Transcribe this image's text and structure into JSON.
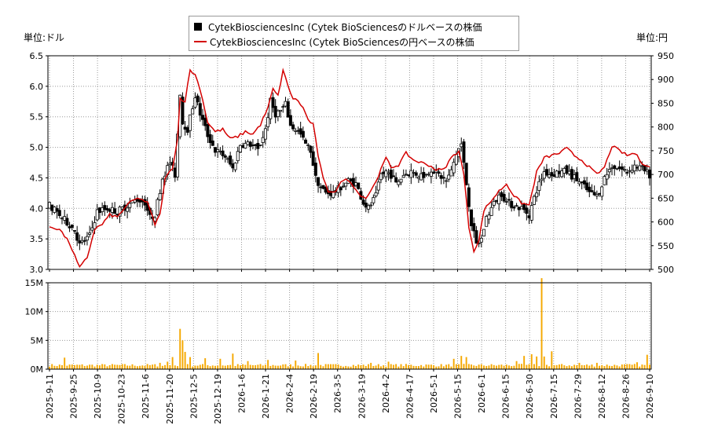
{
  "legend": {
    "usd": "CytekBiosciencesInc (Cytek BioSciencesのドルベースの株価",
    "jpy": "CytekBiosciencesInc (Cytek BioSciencesの円ベースの株価"
  },
  "units": {
    "left": "単位:ドル",
    "right": "単位:円"
  },
  "chart_data": {
    "type": "candlestick+line+bar",
    "price_axis_usd": {
      "min": 3.0,
      "max": 6.5,
      "ticks": [
        "3.0",
        "3.5",
        "4.0",
        "4.5",
        "5.0",
        "5.5",
        "6.0",
        "6.5"
      ]
    },
    "price_axis_jpy": {
      "min": 500,
      "max": 950,
      "ticks": [
        "500",
        "550",
        "600",
        "650",
        "700",
        "750",
        "800",
        "850",
        "900",
        "950"
      ]
    },
    "volume_axis": {
      "min": 0,
      "max": 15000000,
      "ticks": [
        "0M",
        "5M",
        "10M",
        "15M"
      ]
    },
    "x_ticks": [
      "2025-9-11",
      "2025-9-25",
      "2025-10-9",
      "2025-10-23",
      "2025-11-6",
      "2025-11-20",
      "2025-12-5",
      "2025-12-19",
      "2026-1-6",
      "2026-1-21",
      "2026-2-4",
      "2026-2-19",
      "2026-3-5",
      "2026-3-19",
      "2026-4-2",
      "2026-4-17",
      "2026-5-1",
      "2026-5-15",
      "2026-6-1",
      "2026-6-15",
      "2026-6-30",
      "2026-7-15",
      "2026-7-29",
      "2026-8-12",
      "2026-8-26",
      "2026-9-10"
    ],
    "usd_close_anchors": [
      [
        0,
        4.05
      ],
      [
        5,
        3.85
      ],
      [
        10,
        3.65
      ],
      [
        12,
        3.4
      ],
      [
        16,
        3.55
      ],
      [
        19,
        3.95
      ],
      [
        23,
        4.0
      ],
      [
        27,
        3.95
      ],
      [
        31,
        4.05
      ],
      [
        35,
        4.15
      ],
      [
        38,
        4.1
      ],
      [
        40,
        3.85
      ],
      [
        42,
        3.9
      ],
      [
        45,
        4.5
      ],
      [
        48,
        4.75
      ],
      [
        50,
        4.55
      ],
      [
        52,
        5.9
      ],
      [
        53,
        5.4
      ],
      [
        55,
        5.3
      ],
      [
        58,
        5.85
      ],
      [
        60,
        5.55
      ],
      [
        63,
        5.2
      ],
      [
        66,
        4.95
      ],
      [
        70,
        4.85
      ],
      [
        73,
        4.65
      ],
      [
        76,
        5.05
      ],
      [
        80,
        5.05
      ],
      [
        83,
        4.95
      ],
      [
        86,
        5.3
      ],
      [
        88,
        5.75
      ],
      [
        90,
        5.55
      ],
      [
        92,
        5.6
      ],
      [
        94,
        5.7
      ],
      [
        96,
        5.35
      ],
      [
        98,
        5.3
      ],
      [
        100,
        5.2
      ],
      [
        102,
        5.05
      ],
      [
        104,
        4.95
      ],
      [
        106,
        4.5
      ],
      [
        108,
        4.35
      ],
      [
        110,
        4.25
      ],
      [
        113,
        4.25
      ],
      [
        116,
        4.35
      ],
      [
        119,
        4.45
      ],
      [
        122,
        4.4
      ],
      [
        125,
        4.1
      ],
      [
        127,
        4.0
      ],
      [
        130,
        4.2
      ],
      [
        132,
        4.55
      ],
      [
        134,
        4.6
      ],
      [
        136,
        4.55
      ],
      [
        138,
        4.4
      ],
      [
        141,
        4.55
      ],
      [
        144,
        4.6
      ],
      [
        147,
        4.55
      ],
      [
        150,
        4.55
      ],
      [
        152,
        4.65
      ],
      [
        155,
        4.55
      ],
      [
        158,
        4.45
      ],
      [
        160,
        4.6
      ],
      [
        162,
        4.9
      ],
      [
        164,
        5.05
      ],
      [
        166,
        4.4
      ],
      [
        168,
        3.75
      ],
      [
        170,
        3.4
      ],
      [
        172,
        3.5
      ],
      [
        174,
        3.85
      ],
      [
        176,
        4.0
      ],
      [
        178,
        4.15
      ],
      [
        180,
        4.25
      ],
      [
        182,
        4.1
      ],
      [
        185,
        4.05
      ],
      [
        188,
        4.0
      ],
      [
        191,
        3.9
      ],
      [
        194,
        4.3
      ],
      [
        197,
        4.6
      ],
      [
        200,
        4.55
      ],
      [
        203,
        4.6
      ],
      [
        206,
        4.6
      ],
      [
        209,
        4.5
      ],
      [
        212,
        4.4
      ],
      [
        215,
        4.25
      ],
      [
        218,
        4.2
      ],
      [
        221,
        4.5
      ],
      [
        224,
        4.7
      ],
      [
        227,
        4.65
      ],
      [
        230,
        4.6
      ],
      [
        233,
        4.7
      ],
      [
        236,
        4.65
      ],
      [
        239,
        4.55
      ]
    ],
    "jpy_close_anchors": [
      [
        0,
        590
      ],
      [
        4,
        585
      ],
      [
        8,
        555
      ],
      [
        12,
        503
      ],
      [
        15,
        525
      ],
      [
        18,
        585
      ],
      [
        21,
        595
      ],
      [
        24,
        615
      ],
      [
        27,
        610
      ],
      [
        30,
        630
      ],
      [
        33,
        645
      ],
      [
        36,
        650
      ],
      [
        39,
        640
      ],
      [
        42,
        595
      ],
      [
        44,
        615
      ],
      [
        46,
        690
      ],
      [
        49,
        715
      ],
      [
        51,
        775
      ],
      [
        52,
        860
      ],
      [
        54,
        855
      ],
      [
        56,
        920
      ],
      [
        58,
        910
      ],
      [
        60,
        880
      ],
      [
        63,
        810
      ],
      [
        66,
        790
      ],
      [
        69,
        795
      ],
      [
        72,
        775
      ],
      [
        75,
        780
      ],
      [
        78,
        790
      ],
      [
        81,
        785
      ],
      [
        84,
        805
      ],
      [
        87,
        840
      ],
      [
        89,
        880
      ],
      [
        91,
        865
      ],
      [
        93,
        920
      ],
      [
        95,
        885
      ],
      [
        97,
        860
      ],
      [
        99,
        855
      ],
      [
        101,
        840
      ],
      [
        103,
        815
      ],
      [
        105,
        805
      ],
      [
        107,
        740
      ],
      [
        109,
        690
      ],
      [
        111,
        665
      ],
      [
        114,
        665
      ],
      [
        117,
        690
      ],
      [
        120,
        685
      ],
      [
        123,
        660
      ],
      [
        126,
        650
      ],
      [
        129,
        675
      ],
      [
        132,
        710
      ],
      [
        134,
        735
      ],
      [
        136,
        715
      ],
      [
        139,
        720
      ],
      [
        142,
        745
      ],
      [
        145,
        730
      ],
      [
        148,
        725
      ],
      [
        151,
        720
      ],
      [
        154,
        710
      ],
      [
        157,
        710
      ],
      [
        160,
        735
      ],
      [
        163,
        750
      ],
      [
        165,
        700
      ],
      [
        167,
        590
      ],
      [
        169,
        540
      ],
      [
        171,
        560
      ],
      [
        173,
        625
      ],
      [
        176,
        645
      ],
      [
        179,
        665
      ],
      [
        182,
        680
      ],
      [
        185,
        655
      ],
      [
        188,
        640
      ],
      [
        191,
        635
      ],
      [
        194,
        705
      ],
      [
        197,
        735
      ],
      [
        200,
        740
      ],
      [
        203,
        745
      ],
      [
        206,
        755
      ],
      [
        209,
        740
      ],
      [
        212,
        730
      ],
      [
        215,
        715
      ],
      [
        218,
        700
      ],
      [
        221,
        715
      ],
      [
        224,
        760
      ],
      [
        227,
        750
      ],
      [
        230,
        740
      ],
      [
        233,
        745
      ],
      [
        236,
        725
      ],
      [
        239,
        715
      ]
    ],
    "volume_mean_m": 0.8,
    "volume_spikes_m": [
      [
        6,
        2.0
      ],
      [
        44,
        1.1
      ],
      [
        47,
        1.3
      ],
      [
        49,
        2.1
      ],
      [
        52,
        7.0
      ],
      [
        53,
        5.0
      ],
      [
        54,
        3.0
      ],
      [
        56,
        2.1
      ],
      [
        62,
        1.9
      ],
      [
        68,
        1.8
      ],
      [
        73,
        2.7
      ],
      [
        79,
        1.4
      ],
      [
        87,
        1.6
      ],
      [
        98,
        1.5
      ],
      [
        107,
        2.8
      ],
      [
        128,
        1.1
      ],
      [
        135,
        1.3
      ],
      [
        161,
        1.8
      ],
      [
        164,
        2.3
      ],
      [
        166,
        2.1
      ],
      [
        186,
        1.4
      ],
      [
        189,
        2.3
      ],
      [
        192,
        2.6
      ],
      [
        194,
        2.2
      ],
      [
        196,
        15.8
      ],
      [
        197,
        2.2
      ],
      [
        200,
        3.1
      ],
      [
        211,
        1.1
      ],
      [
        218,
        1.1
      ],
      [
        234,
        1.2
      ],
      [
        238,
        2.5
      ]
    ]
  }
}
